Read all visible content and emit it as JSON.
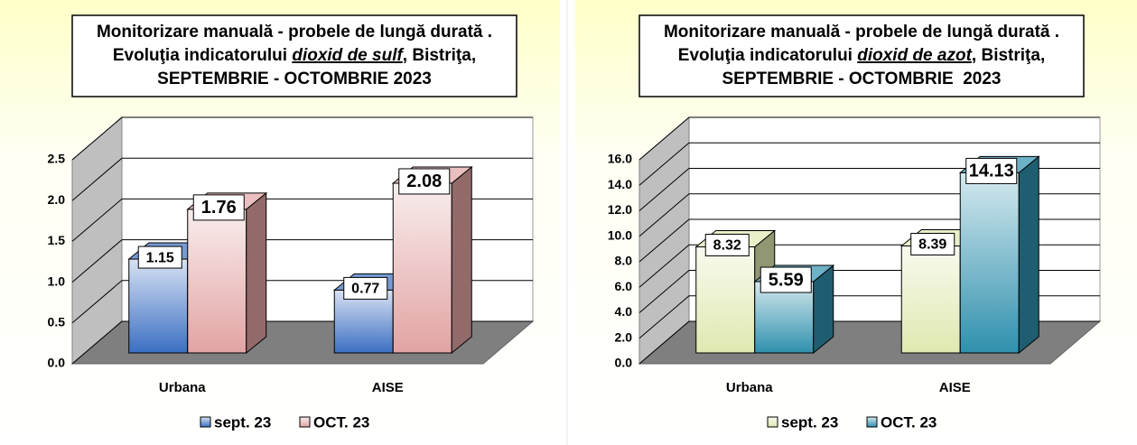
{
  "chart_data": [
    {
      "type": "bar3d",
      "title": {
        "line1": "Monitorizare manuală - probele de lungă durată .",
        "line2": [
          "Evoluţia indicatorului ",
          "dioxid de sulf",
          ", Bistriţa,"
        ],
        "line3": "SEPTEMBRIE - OCTOMBRIE 2023"
      },
      "categories": [
        "Urbana",
        "AISE"
      ],
      "series": [
        {
          "name": "sept. 23",
          "color": "#3b6fc2",
          "values": [
            1.15,
            0.77
          ]
        },
        {
          "name": "OCT. 23",
          "color": "#e2a3a3",
          "values": [
            1.76,
            2.08
          ]
        }
      ],
      "ylim": [
        0,
        2.5
      ],
      "yticks": [
        {
          "value": 0,
          "label": "0.0"
        },
        0.5,
        {
          "value": 1,
          "label": "1.0"
        },
        1.5,
        {
          "value": 2,
          "label": "2.0"
        },
        2.5
      ],
      "grid": true,
      "legend": "bottom"
    },
    {
      "type": "bar3d",
      "title": {
        "line1": "Monitorizare manuală - probele de lungă durată .",
        "line2": [
          "Evoluţia indicatorului ",
          "dioxid de azot",
          ", Bistriţa,"
        ],
        "line3": "SEPTEMBRIE - OCTOMBRIE  2023"
      },
      "categories": [
        "Urbana",
        "AISE"
      ],
      "series": [
        {
          "name": "sept. 23",
          "color": "#dfe8b0",
          "values": [
            8.32,
            8.39
          ]
        },
        {
          "name": "OCT. 23",
          "color": "#2f90ad",
          "values": [
            5.59,
            14.13
          ]
        }
      ],
      "ylim": [
        0,
        16
      ],
      "yticks": [
        {
          "value": 0,
          "label": "0.0"
        },
        {
          "value": 2,
          "label": "2.0"
        },
        {
          "value": 4,
          "label": "4.0"
        },
        {
          "value": 6,
          "label": "6.0"
        },
        {
          "value": 8,
          "label": "8.0"
        },
        {
          "value": 10,
          "label": "10.0"
        },
        {
          "value": 12,
          "label": "12.0"
        },
        {
          "value": 14,
          "label": "14.0"
        },
        {
          "value": 16,
          "label": "16.0"
        }
      ],
      "grid": true,
      "legend": "bottom"
    }
  ]
}
